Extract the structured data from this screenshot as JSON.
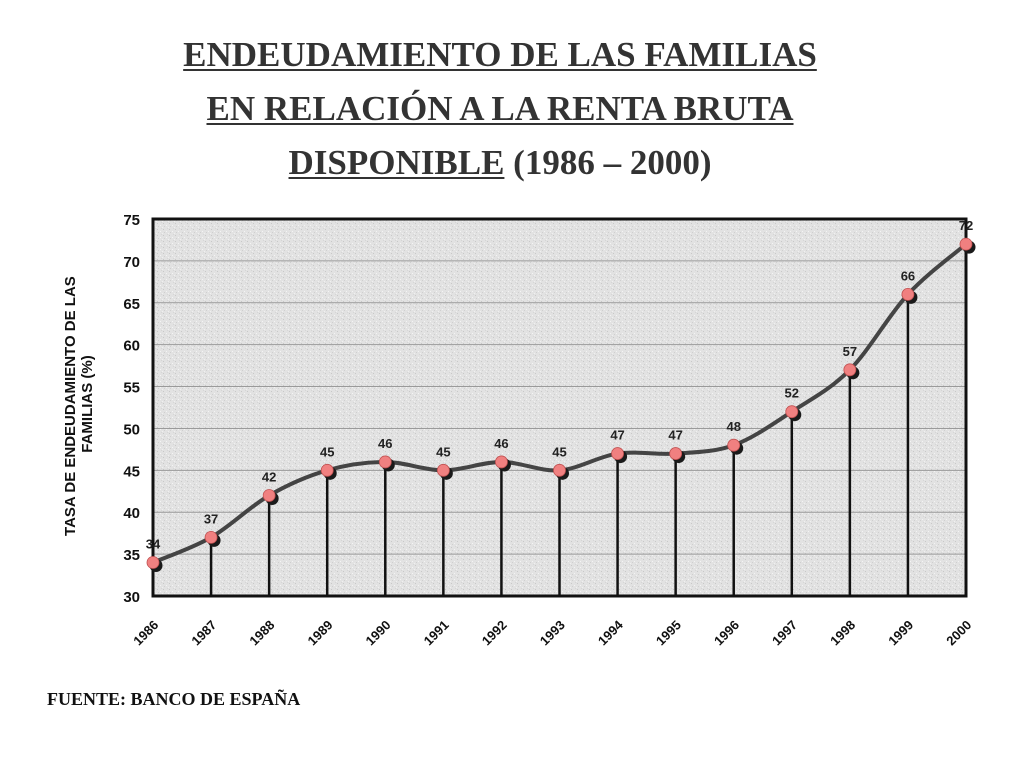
{
  "title": {
    "line1": "ENDEUDAMIENTO DE LAS FAMILIAS",
    "line2": "EN RELACIÓN A LA RENTA BRUTA",
    "line3_underlined": "DISPONIBLE",
    "line3_rest": " (1986 – 2000)"
  },
  "source": "FUENTE: BANCO DE ESPAÑA",
  "chart_data": {
    "type": "line",
    "x": [
      "1986",
      "1987",
      "1988",
      "1989",
      "1990",
      "1991",
      "1992",
      "1993",
      "1994",
      "1995",
      "1996",
      "1997",
      "1998",
      "1999",
      "2000"
    ],
    "series": [
      {
        "values": [
          34,
          37,
          42,
          45,
          46,
          45,
          46,
          45,
          47,
          47,
          48,
          52,
          57,
          66,
          72
        ]
      }
    ],
    "data_labels": [
      "34",
      "37",
      "42",
      "45",
      "46",
      "45",
      "46",
      "45",
      "47",
      "47",
      "48",
      "52",
      "57",
      "66",
      "72"
    ],
    "ylabel_line1": "TASA DE ENDEUDAMIENTO DE LAS",
    "ylabel_line2": "FAMILIAS (%)",
    "ylim": [
      30,
      75
    ],
    "yticks": [
      "30",
      "35",
      "40",
      "45",
      "50",
      "55",
      "60",
      "65",
      "70",
      "75"
    ],
    "grid": true,
    "drop_lines": true,
    "colors": {
      "line": "#444444",
      "marker_fill": "#f08080",
      "marker_shadow": "#1a1a1a",
      "plot_bg": "#e4e4e4",
      "grid": "#9a9a9a"
    }
  }
}
